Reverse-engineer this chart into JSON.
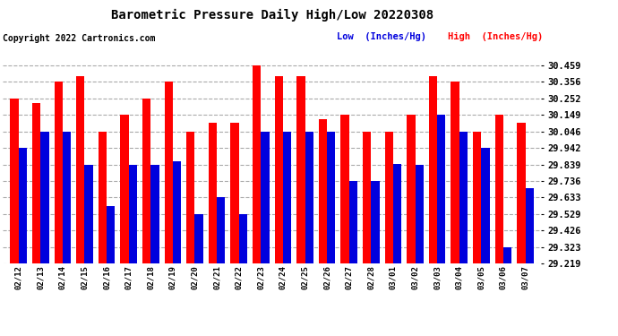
{
  "title": "Barometric Pressure Daily High/Low 20220308",
  "copyright": "Copyright 2022 Cartronics.com",
  "legend_low": "Low  (Inches/Hg)",
  "legend_high": "High  (Inches/Hg)",
  "dates": [
    "02/12",
    "02/13",
    "02/14",
    "02/15",
    "02/16",
    "02/17",
    "02/18",
    "02/19",
    "02/20",
    "02/21",
    "02/22",
    "02/23",
    "02/24",
    "02/25",
    "02/26",
    "02/27",
    "02/28",
    "03/01",
    "03/02",
    "03/03",
    "03/04",
    "03/05",
    "03/06",
    "03/07"
  ],
  "high_values": [
    30.252,
    30.22,
    30.356,
    30.39,
    30.046,
    30.149,
    30.252,
    30.356,
    30.046,
    30.1,
    30.1,
    30.459,
    30.39,
    30.39,
    30.12,
    30.149,
    30.046,
    30.046,
    30.149,
    30.39,
    30.356,
    30.046,
    30.149,
    30.1
  ],
  "low_values": [
    29.942,
    30.046,
    30.046,
    29.839,
    29.58,
    29.839,
    29.839,
    29.86,
    29.53,
    29.633,
    29.53,
    30.046,
    30.046,
    30.046,
    30.046,
    29.736,
    29.736,
    29.84,
    29.839,
    30.149,
    30.046,
    29.942,
    29.323,
    29.69
  ],
  "ylim_min": 29.219,
  "ylim_max": 30.562,
  "yticks": [
    29.219,
    29.323,
    29.426,
    29.529,
    29.633,
    29.736,
    29.839,
    29.942,
    30.046,
    30.149,
    30.252,
    30.356,
    30.459
  ],
  "bar_width": 0.38,
  "high_color": "#ff0000",
  "low_color": "#0000dd",
  "bg_color": "#ffffff",
  "grid_color": "#aaaaaa",
  "title_color": "#000000",
  "copyright_color": "#000000",
  "legend_low_color": "#0000dd",
  "legend_high_color": "#ff0000",
  "title_fontsize": 10,
  "copyright_fontsize": 7,
  "legend_fontsize": 7.5,
  "ytick_fontsize": 7.5,
  "xtick_fontsize": 6.5
}
